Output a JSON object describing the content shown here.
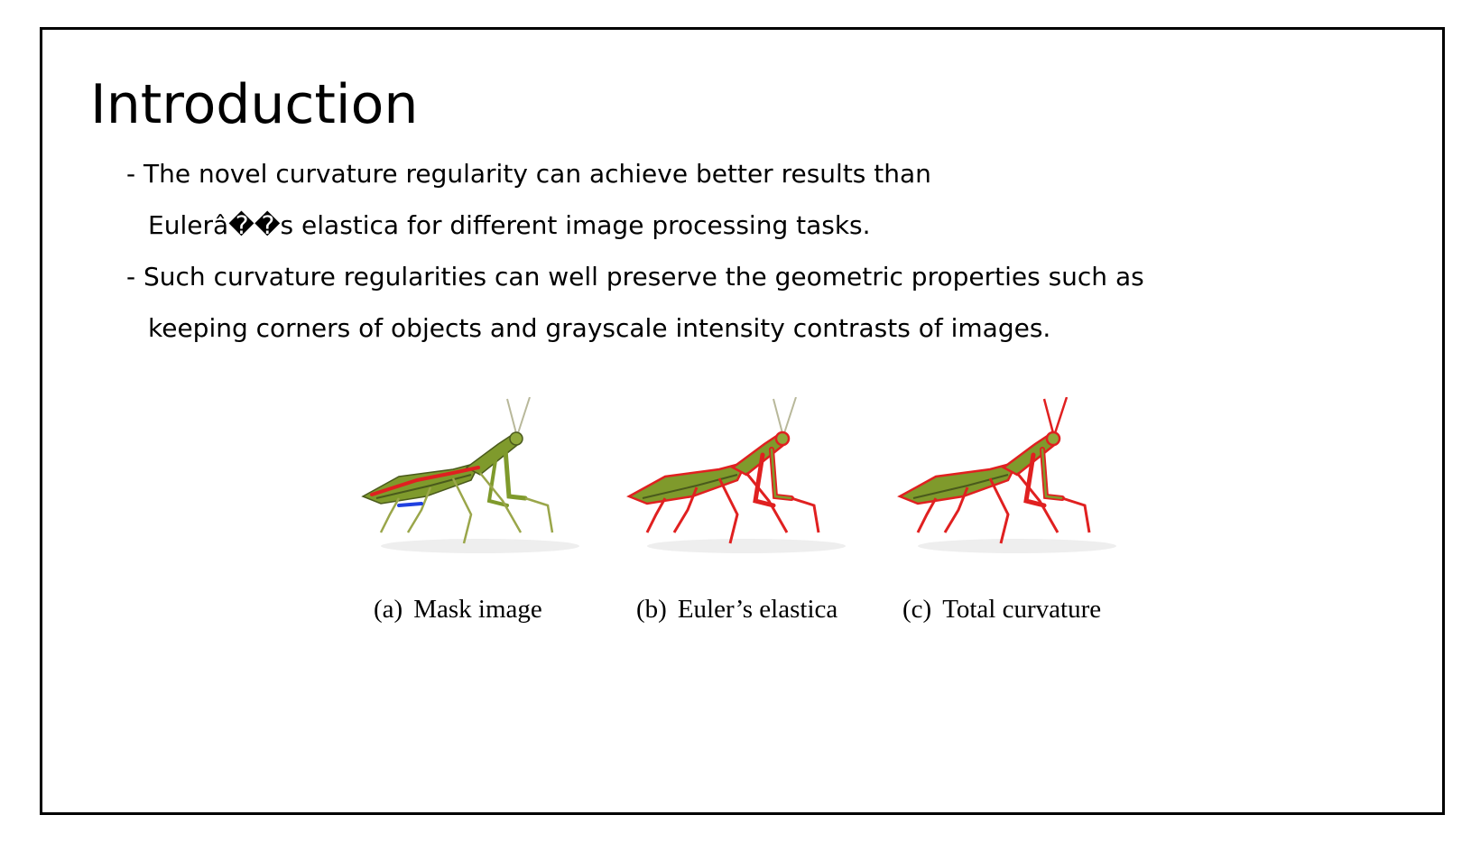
{
  "slide": {
    "title": "Introduction",
    "bullets": [
      {
        "line1": "- The novel curvature regularity can achieve better results than",
        "line2": "Eulerâ��s elastica for different image processing tasks."
      },
      {
        "line1": "- Such curvature regularities can well preserve the geometric properties such as",
        "line2": "keeping corners of objects and grayscale intensity contrasts of images."
      }
    ]
  },
  "figure": {
    "panels": [
      {
        "tag": "(a)",
        "label": "Mask image",
        "icon": "mantis-mask-image"
      },
      {
        "tag": "(b)",
        "label": "Euler’s elastica",
        "icon": "mantis-eulers-elastica"
      },
      {
        "tag": "(c)",
        "label": "Total curvature",
        "icon": "mantis-total-curvature"
      }
    ],
    "colors": {
      "mantis_body": "#7f9a2c",
      "mantis_dark": "#4a5a1c",
      "mask_red": "#e02020",
      "mask_blue": "#2040e0"
    }
  }
}
